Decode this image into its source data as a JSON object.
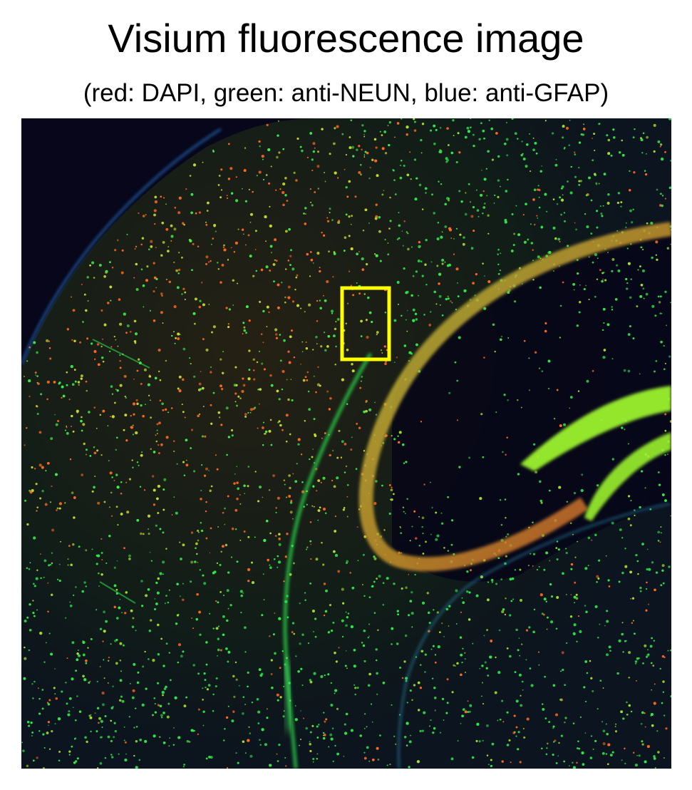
{
  "figure": {
    "title": "Visium fluorescence image",
    "subtitle": "(red: DAPI, green: anti-NEUN, blue: anti-GFAP)"
  },
  "image": {
    "description_kind": "fluorescence microscopy of brain tissue section",
    "channels": [
      {
        "stain": "DAPI",
        "color": "#ff3a1e"
      },
      {
        "stain": "anti-NEUN",
        "color": "#2cff3a"
      },
      {
        "stain": "anti-GFAP",
        "color": "#2f5cff"
      }
    ],
    "background_color": "#07061a",
    "highlight": {
      "color": "#ffff00",
      "shape": "rectangle"
    }
  }
}
